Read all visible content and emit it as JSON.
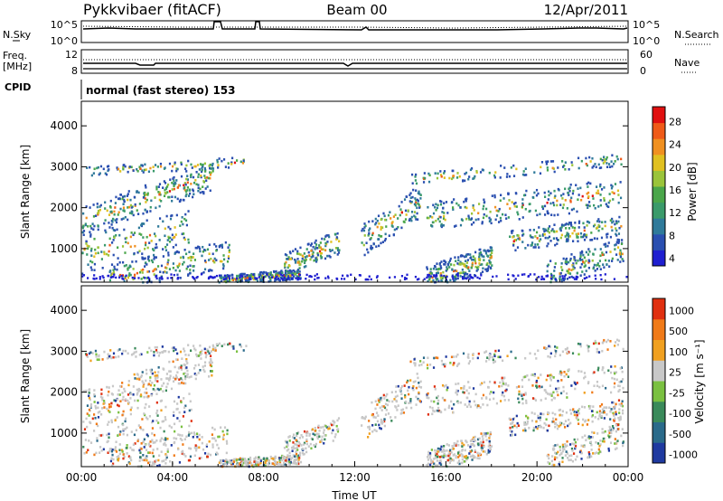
{
  "chart_data": [
    {
      "type": "heatmap",
      "title": "Pykkvibaer (fitACF)",
      "subtitle_center": "Beam 00",
      "date": "12/Apr/2011",
      "header_panels": {
        "nsky_label": "N.Sky",
        "nsky_ticks": [
          "10^5",
          "10^0"
        ],
        "nsearch_label": "N.Search",
        "nsearch_ticks": [
          "10^5",
          "10^0"
        ],
        "freq_label": "Freq.",
        "freq_unit": "[MHz]",
        "freq_ticks": [
          "12",
          "8"
        ],
        "nave_label": "Nave",
        "nave_ticks": [
          "60",
          "0"
        ],
        "cpid_label": "CPID",
        "cpid_text": "normal (fast stereo) 153"
      },
      "x_ticks": [
        "00:00",
        "04:00",
        "08:00",
        "12:00",
        "16:00",
        "20:00",
        "00:00"
      ],
      "xlabel": "Time UT",
      "panels": [
        {
          "name": "power",
          "ylabel": "Slant Range [km]",
          "y_ticks": [
            "4000",
            "3000",
            "2000",
            "1000"
          ],
          "ylim": [
            180,
            4600
          ],
          "colorbar": {
            "label": "Power [dB]",
            "ticks": [
              "28",
              "24",
              "20",
              "16",
              "12",
              "8",
              "4"
            ],
            "range": [
              0,
              32
            ],
            "colors": [
              "#1f1fd0",
              "#2a4fb0",
              "#2f7a9a",
              "#3a9a6a",
              "#4aa64a",
              "#9ac43a",
              "#e0c020",
              "#f09020",
              "#ef5a18",
              "#e01010"
            ]
          }
        },
        {
          "name": "velocity",
          "ylabel": "Slant Range [km]",
          "y_ticks": [
            "4000",
            "3000",
            "2000",
            "1000"
          ],
          "ylim": [
            180,
            4600
          ],
          "colorbar": {
            "label": "Velocity [m s⁻¹]",
            "ticks": [
              "1000",
              "500",
              "100",
              "25",
              "-25",
              "-100",
              "-500",
              "-1000"
            ],
            "colors": [
              "#1f3aa0",
              "#2a6a8a",
              "#3a8a5a",
              "#7ac040",
              "#c8c8c8",
              "#f0a020",
              "#f07a18",
              "#e03010"
            ]
          }
        }
      ]
    }
  ]
}
